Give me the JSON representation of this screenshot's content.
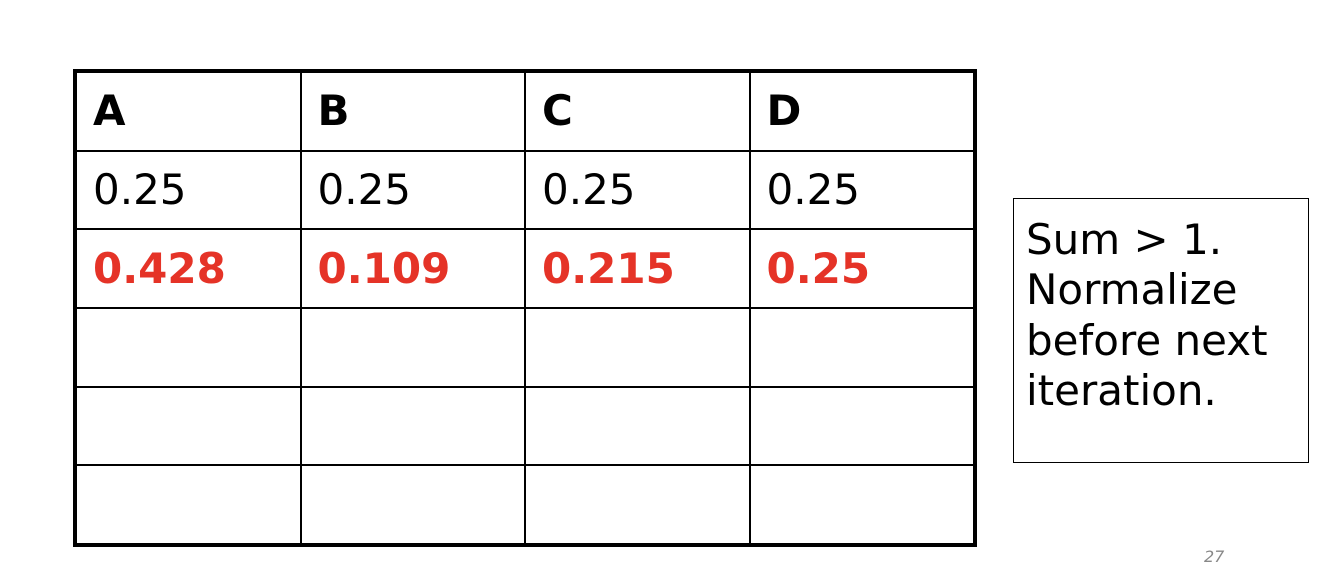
{
  "table": {
    "headers": [
      "A",
      "B",
      "C",
      "D"
    ],
    "rows": [
      [
        "0.25",
        "0.25",
        "0.25",
        "0.25"
      ],
      [
        "0.428",
        "0.109",
        "0.215",
        "0.25"
      ],
      [
        "",
        "",
        "",
        ""
      ],
      [
        "",
        "",
        "",
        ""
      ],
      [
        "",
        "",
        "",
        ""
      ]
    ],
    "highlight_color": "#e53327"
  },
  "note": {
    "lines": [
      "Sum > 1.",
      "Normalize",
      "before next",
      "iteration."
    ]
  },
  "page_number": "27"
}
